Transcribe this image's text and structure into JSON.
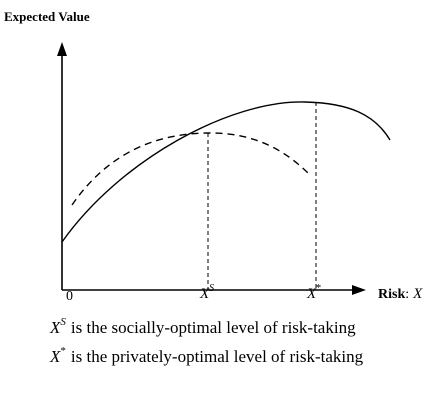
{
  "y_axis_label": "Expected Value",
  "origin_label": "0",
  "x_marks": [
    {
      "symbol": "X",
      "sup": "S"
    },
    {
      "symbol": "X",
      "sup": "*"
    }
  ],
  "x_axis_label": {
    "term": "Risk",
    "separator": ":",
    "variable": "X"
  },
  "captions": [
    {
      "symbol": "X",
      "sup": "S",
      "text": "is the socially-optimal level of risk-taking"
    },
    {
      "symbol": "X",
      "sup": "*",
      "text": "is the privately-optimal level of risk-taking"
    }
  ]
}
